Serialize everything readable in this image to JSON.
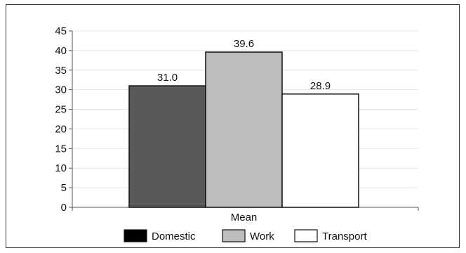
{
  "chart_data": {
    "type": "bar",
    "title": "",
    "xlabel": "",
    "ylabel": "",
    "categories": [
      "Mean"
    ],
    "series": [
      {
        "name": "Domestic",
        "values": [
          31.0
        ],
        "label": "31.0",
        "color": "#595959"
      },
      {
        "name": "Work",
        "values": [
          39.6
        ],
        "label": "39.6",
        "color": "#bdbdbd"
      },
      {
        "name": "Transport",
        "values": [
          28.9
        ],
        "label": "28.9",
        "color": "#ffffff"
      }
    ],
    "ylim": [
      0,
      45
    ],
    "yticks": [
      "0",
      "5",
      "10",
      "15",
      "20",
      "25",
      "30",
      "35",
      "40",
      "45"
    ],
    "grid": true,
    "legend_position": "bottom",
    "legend_swatch_colors": [
      "#000000",
      "#bdbdbd",
      "#ffffff"
    ]
  }
}
